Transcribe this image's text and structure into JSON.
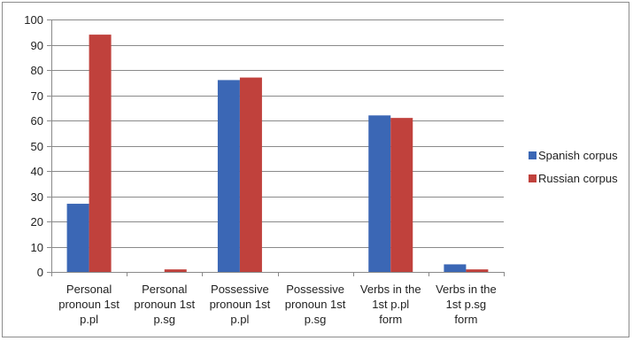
{
  "chart_data": {
    "type": "bar",
    "title": "",
    "xlabel": "",
    "ylabel": "",
    "ylim": [
      0,
      100
    ],
    "yticks": [
      0,
      10,
      20,
      30,
      40,
      50,
      60,
      70,
      80,
      90,
      100
    ],
    "grid": true,
    "legend_position": "right",
    "categories": [
      [
        "Personal",
        "pronoun 1st",
        "p.pl"
      ],
      [
        "Personal",
        "pronoun 1st",
        "p.sg"
      ],
      [
        "Possessive",
        "pronoun 1st",
        "p.pl"
      ],
      [
        "Possessive",
        "pronoun 1st",
        "p.sg"
      ],
      [
        "Verbs in the",
        "1st p.pl",
        "form"
      ],
      [
        "Verbs in the",
        "1st p.sg",
        "form"
      ]
    ],
    "series": [
      {
        "name": "Spanish corpus",
        "color": "#3b67b5",
        "values": [
          27,
          0,
          76,
          0,
          62,
          3
        ]
      },
      {
        "name": "Russian corpus",
        "color": "#c0413c",
        "values": [
          94,
          1,
          77,
          0,
          61,
          1
        ]
      }
    ]
  }
}
